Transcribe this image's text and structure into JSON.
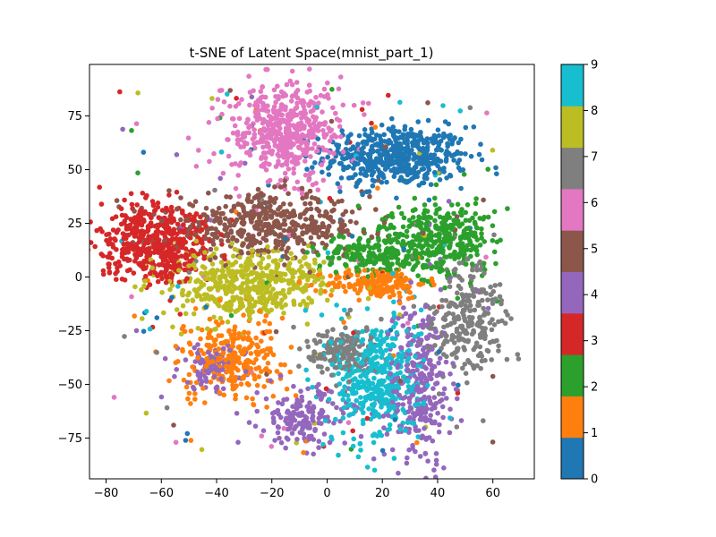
{
  "chart_data": {
    "type": "scatter",
    "title": "t-SNE of Latent Space(mnist_part_1)",
    "xlabel": "",
    "ylabel": "",
    "xlim": [
      -86,
      75
    ],
    "ylim": [
      -94,
      99
    ],
    "x_ticks": [
      -80,
      -60,
      -40,
      -20,
      0,
      20,
      40,
      60
    ],
    "y_ticks": [
      -75,
      -50,
      -25,
      0,
      25,
      50,
      75
    ],
    "grid": false,
    "colorbar": {
      "range": [
        0,
        9
      ],
      "ticks": [
        0,
        1,
        2,
        3,
        4,
        5,
        6,
        7,
        8,
        9
      ],
      "colors": [
        "#1f77b4",
        "#ff7f0e",
        "#2ca02c",
        "#d62728",
        "#9467bd",
        "#8c564b",
        "#e377c2",
        "#7f7f7f",
        "#bcbd22",
        "#17becf"
      ]
    },
    "clusters": [
      {
        "label": 0,
        "center": [
          25,
          56
        ],
        "spread": [
          13,
          7
        ],
        "count": 520
      },
      {
        "label": 1,
        "center": [
          -35,
          -38
        ],
        "spread": [
          9,
          9
        ],
        "count": 280
      },
      {
        "label": 1,
        "center": [
          18,
          -3
        ],
        "spread": [
          9,
          3.5
        ],
        "count": 180
      },
      {
        "label": 2,
        "center": [
          42,
          19
        ],
        "spread": [
          9,
          9
        ],
        "count": 330
      },
      {
        "label": 2,
        "center": [
          17,
          11
        ],
        "spread": [
          10,
          5
        ],
        "count": 220
      },
      {
        "label": 3,
        "center": [
          -62,
          16
        ],
        "spread": [
          10,
          9
        ],
        "count": 520
      },
      {
        "label": 4,
        "center": [
          33,
          -50
        ],
        "spread": [
          6,
          20
        ],
        "count": 300
      },
      {
        "label": 4,
        "center": [
          -8,
          -65
        ],
        "spread": [
          8,
          7
        ],
        "count": 160
      },
      {
        "label": 4,
        "center": [
          -42,
          -42
        ],
        "spread": [
          6,
          5
        ],
        "count": 90
      },
      {
        "label": 5,
        "center": [
          -22,
          24
        ],
        "spread": [
          18,
          7
        ],
        "count": 470
      },
      {
        "label": 6,
        "center": [
          -15,
          68
        ],
        "spread": [
          10,
          11
        ],
        "count": 500
      },
      {
        "label": 7,
        "center": [
          50,
          -20
        ],
        "spread": [
          7,
          13
        ],
        "count": 260
      },
      {
        "label": 7,
        "center": [
          5,
          -35
        ],
        "spread": [
          6,
          6
        ],
        "count": 150
      },
      {
        "label": 8,
        "center": [
          -28,
          -3
        ],
        "spread": [
          14,
          8
        ],
        "count": 480
      },
      {
        "label": 9,
        "center": [
          18,
          -48
        ],
        "spread": [
          8,
          15
        ],
        "count": 420
      }
    ]
  }
}
